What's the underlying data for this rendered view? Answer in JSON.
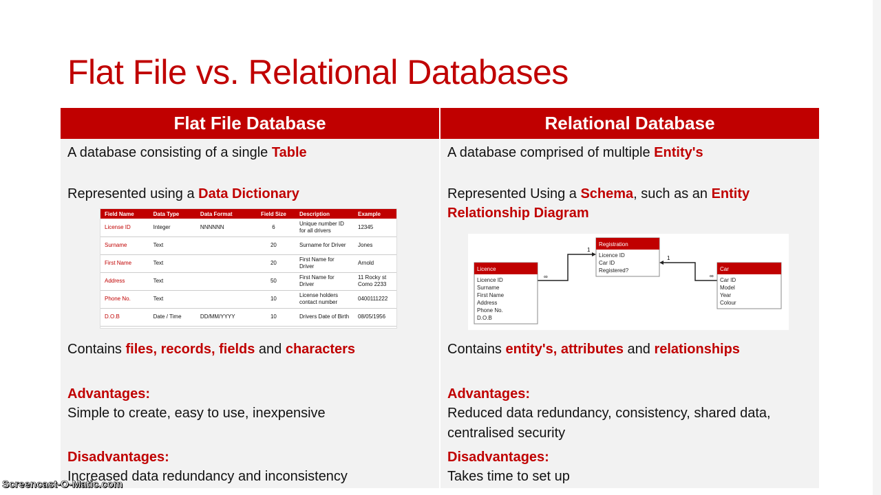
{
  "title": "Flat File vs. Relational Databases",
  "flat": {
    "heading": "Flat File Database",
    "line1": {
      "pre": "A database consisting of a single ",
      "hl": "Table"
    },
    "line2": {
      "pre": "Represented using a ",
      "hl": "Data Dictionary"
    },
    "line3": {
      "pre": "Contains ",
      "hl1": "files, records, fields",
      "mid": " and ",
      "hl2": "characters"
    },
    "adv_label": "Advantages:",
    "adv": "Simple to create, easy to use, inexpensive",
    "dis_label": "Disadvantages:",
    "dis": "Increased data redundancy and inconsistency",
    "dictionary": {
      "headers": [
        "Field Name",
        "Data Type",
        "Data Format",
        "Field Size",
        "Description",
        "Example"
      ],
      "rows": [
        [
          "License ID",
          "Integer",
          "NNNNNN",
          "6",
          "Unique number ID for all drivers",
          "12345"
        ],
        [
          "Surname",
          "Text",
          "",
          "20",
          "Surname for Driver",
          "Jones"
        ],
        [
          "First Name",
          "Text",
          "",
          "20",
          "First Name for Driver",
          "Arnold"
        ],
        [
          "Address",
          "Text",
          "",
          "50",
          "First Name for Driver",
          "11 Rocky st Como 2233"
        ],
        [
          "Phone No.",
          "Text",
          "",
          "10",
          "License holders contact number",
          "0400111222"
        ],
        [
          "D.O.B",
          "Date / Time",
          "DD/MM/YYYY",
          "10",
          "Drivers Date of Birth",
          "08/05/1956"
        ]
      ]
    }
  },
  "relational": {
    "heading": "Relational Database",
    "line1": {
      "pre": "A database comprised of multiple ",
      "hl": "Entity's"
    },
    "line2": {
      "pre": "Represented Using a ",
      "hl1": "Schema",
      "mid": ", such as an ",
      "hl2": "Entity",
      "hl3": "Relationship Diagram"
    },
    "line3": {
      "pre": "Contains ",
      "hl1": "entity's, attributes",
      "mid": " and ",
      "hl2": "relationships"
    },
    "adv_label": "Advantages:",
    "adv1": "Reduced data redundancy, consistency, shared data,",
    "adv2": "centralised security",
    "dis_label": "Disadvantages:",
    "dis": "Takes time to set up",
    "erd": {
      "registration": {
        "name": "Registration",
        "fields": [
          "Licence ID",
          "Car ID",
          "Registered?"
        ]
      },
      "licence": {
        "name": "Licence",
        "fields": [
          "Licence ID",
          "Surname",
          "First Name",
          "Address",
          "Phone No.",
          "D.O.B"
        ]
      },
      "car": {
        "name": "Car",
        "fields": [
          "Car ID",
          "Model",
          "Year",
          "Colour"
        ]
      },
      "labels": {
        "one": "1",
        "many": "∞"
      }
    }
  },
  "watermark": "Screencast-O-Matic.com",
  "colors": {
    "accent": "#c00000",
    "panel": "#f2f2f2"
  }
}
